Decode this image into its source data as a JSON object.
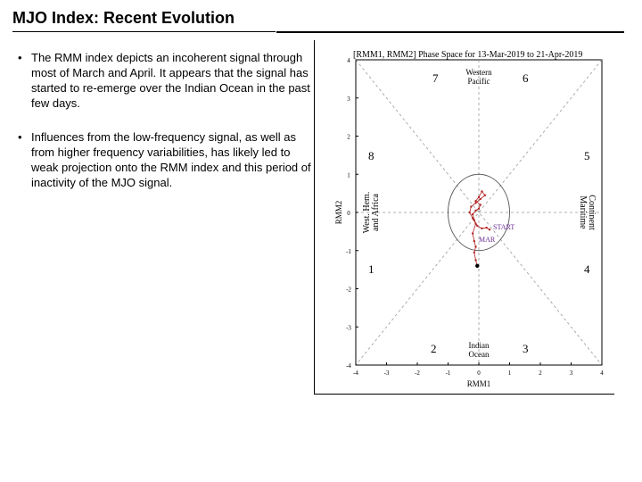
{
  "slide": {
    "title": "MJO Index: Recent Evolution",
    "bullets": [
      "The RMM index depicts an incoherent signal through most of March and April. It appears that the signal has started to re-emerge over the Indian Ocean in the past few days.",
      "Influences from the low-frequency signal, as well as from higher frequency variabilities, has likely led to weak projection onto the RMM index and this period of inactivity of the MJO signal."
    ]
  },
  "figure": {
    "title": "[RMM1, RMM2] Phase Space for 13-Mar-2019 to 21-Apr-2019",
    "xlabel": "RMM1",
    "ylabel": "RMM2",
    "x_ticks": [
      "-4",
      "-3",
      "-2",
      "-1",
      "0",
      "1",
      "2",
      "3",
      "4"
    ],
    "y_ticks": [
      "4",
      "3",
      "2",
      "1",
      "0",
      "-1",
      "-2",
      "-3",
      "-4"
    ],
    "phases": {
      "p1": "1",
      "p2": "2",
      "p3": "3",
      "p4": "4",
      "p5": "5",
      "p6": "6",
      "p7": "7",
      "p8": "8"
    },
    "regions": {
      "western_pacific_1": "Western",
      "western_pacific_2": "Pacific",
      "indian_ocean_1": "Indian",
      "indian_ocean_2": "Ocean",
      "maritime_1": "Maritime",
      "maritime_2": "Continent",
      "west_hem_1": "West. Hem.",
      "west_hem_2": "and Africa"
    },
    "annotations": {
      "start": "START",
      "month": "MAR"
    },
    "colors": {
      "axes": "#000000",
      "dashed": "#9a9a9a",
      "trajectory_red": "#b22222",
      "trajectory_purple": "#6a2c91",
      "marker": "#000000"
    },
    "trajectory_points": [
      {
        "x": 0.35,
        "y": -0.45
      },
      {
        "x": 0.25,
        "y": -0.4
      },
      {
        "x": 0.1,
        "y": -0.42
      },
      {
        "x": -0.05,
        "y": -0.35
      },
      {
        "x": -0.15,
        "y": -0.2
      },
      {
        "x": -0.2,
        "y": -0.05
      },
      {
        "x": -0.1,
        "y": 0.05
      },
      {
        "x": 0.0,
        "y": 0.1
      },
      {
        "x": 0.05,
        "y": 0.2
      },
      {
        "x": -0.1,
        "y": 0.3
      },
      {
        "x": 0.0,
        "y": 0.4
      },
      {
        "x": 0.1,
        "y": 0.55
      },
      {
        "x": 0.2,
        "y": 0.45
      },
      {
        "x": 0.05,
        "y": 0.35
      },
      {
        "x": -0.1,
        "y": 0.25
      },
      {
        "x": -0.25,
        "y": 0.15
      },
      {
        "x": -0.3,
        "y": 0.0
      },
      {
        "x": -0.2,
        "y": -0.15
      },
      {
        "x": -0.1,
        "y": -0.3
      },
      {
        "x": -0.2,
        "y": -0.55
      },
      {
        "x": -0.15,
        "y": -0.75
      },
      {
        "x": -0.1,
        "y": -0.9
      },
      {
        "x": -0.15,
        "y": -1.05
      },
      {
        "x": -0.1,
        "y": -1.25
      },
      {
        "x": -0.05,
        "y": -1.4
      }
    ]
  }
}
